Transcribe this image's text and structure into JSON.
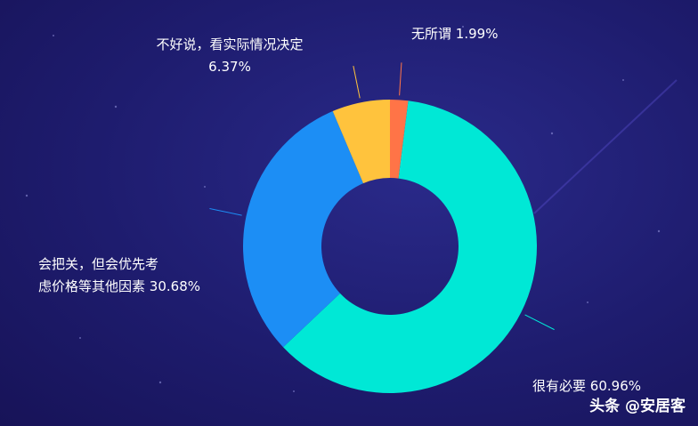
{
  "chart_data": {
    "type": "pie",
    "categories": [
      "无所谓",
      "很有必要",
      "会把关，但会优先考\n虑价格等其他因素",
      "不好说，看实际情况决定"
    ],
    "values": [
      1.99,
      60.96,
      30.68,
      6.37
    ],
    "value_labels": [
      "1.99%",
      "60.96%",
      "30.68%",
      "6.37%"
    ],
    "colors": [
      "#ff7447",
      "#00e8d6",
      "#1c8ef5",
      "#ffc33d"
    ],
    "donut": true
  },
  "watermark": "头条 @安居客"
}
